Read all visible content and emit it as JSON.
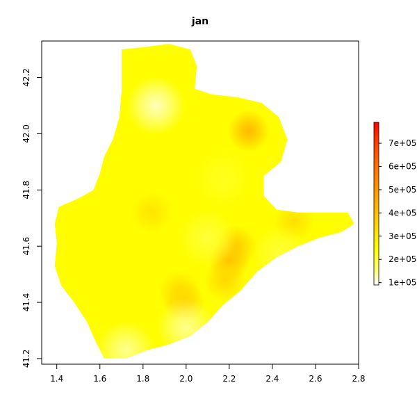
{
  "title": "jan",
  "colors": {
    "ramp": [
      "#ffffff",
      "#ffff80",
      "#ffff00",
      "#ffcc00",
      "#ff9900",
      "#ff6600",
      "#ff3300",
      "#ff0000"
    ],
    "axis": "#000000"
  },
  "chart_data": {
    "type": "heatmap",
    "xlim": [
      1.33,
      2.8
    ],
    "ylim": [
      41.18,
      42.33
    ],
    "x_ticks": [
      1.4,
      1.6,
      1.8,
      2.0,
      2.2,
      2.4,
      2.6,
      2.8
    ],
    "y_ticks": [
      41.2,
      41.4,
      41.6,
      41.8,
      42.0,
      42.2
    ],
    "x_tick_labels": [
      "1.4",
      "1.6",
      "1.8",
      "2.0",
      "2.2",
      "2.4",
      "2.6",
      "2.8"
    ],
    "y_tick_labels": [
      "41.2",
      "41.4",
      "41.6",
      "41.8",
      "42.0",
      "42.2"
    ],
    "legend": {
      "range": [
        90000,
        790000
      ],
      "ticks": [
        100000,
        200000,
        300000,
        400000,
        500000,
        600000,
        700000
      ],
      "labels": [
        "1e+05",
        "2e+05",
        "3e+05",
        "4e+05",
        "5e+05",
        "6e+05",
        "7e+05"
      ],
      "placement": "right"
    },
    "region_outline": [
      [
        1.7,
        42.3
      ],
      [
        1.82,
        42.31
      ],
      [
        1.92,
        42.32
      ],
      [
        2.02,
        42.3
      ],
      [
        2.05,
        42.24
      ],
      [
        2.04,
        42.16
      ],
      [
        2.12,
        42.14
      ],
      [
        2.24,
        42.13
      ],
      [
        2.35,
        42.11
      ],
      [
        2.43,
        42.06
      ],
      [
        2.47,
        41.98
      ],
      [
        2.44,
        41.9
      ],
      [
        2.36,
        41.85
      ],
      [
        2.36,
        41.78
      ],
      [
        2.42,
        41.73
      ],
      [
        2.52,
        41.72
      ],
      [
        2.64,
        41.72
      ],
      [
        2.75,
        41.72
      ],
      [
        2.78,
        41.68
      ],
      [
        2.72,
        41.65
      ],
      [
        2.62,
        41.63
      ],
      [
        2.52,
        41.6
      ],
      [
        2.42,
        41.56
      ],
      [
        2.33,
        41.51
      ],
      [
        2.25,
        41.44
      ],
      [
        2.17,
        41.39
      ],
      [
        2.1,
        41.33
      ],
      [
        2.02,
        41.28
      ],
      [
        1.92,
        41.25
      ],
      [
        1.82,
        41.23
      ],
      [
        1.72,
        41.2
      ],
      [
        1.62,
        41.2
      ],
      [
        1.58,
        41.26
      ],
      [
        1.54,
        41.33
      ],
      [
        1.48,
        41.4
      ],
      [
        1.42,
        41.46
      ],
      [
        1.39,
        41.53
      ],
      [
        1.4,
        41.61
      ],
      [
        1.39,
        41.68
      ],
      [
        1.41,
        41.74
      ],
      [
        1.5,
        41.77
      ],
      [
        1.57,
        41.8
      ],
      [
        1.6,
        41.86
      ],
      [
        1.62,
        41.92
      ],
      [
        1.66,
        41.98
      ],
      [
        1.69,
        42.06
      ],
      [
        1.7,
        42.15
      ],
      [
        1.7,
        42.24
      ]
    ],
    "hotspots": [
      {
        "x": 2.29,
        "y": 42.01,
        "value": 420000
      },
      {
        "x": 2.2,
        "y": 41.55,
        "value": 400000
      },
      {
        "x": 2.23,
        "y": 41.6,
        "value": 370000
      },
      {
        "x": 1.99,
        "y": 41.4,
        "value": 360000
      },
      {
        "x": 2.18,
        "y": 41.48,
        "value": 340000
      },
      {
        "x": 1.97,
        "y": 41.44,
        "value": 330000
      },
      {
        "x": 2.5,
        "y": 41.69,
        "value": 320000
      },
      {
        "x": 1.84,
        "y": 41.72,
        "value": 310000
      },
      {
        "x": 1.86,
        "y": 42.1,
        "value": 120000
      },
      {
        "x": 1.72,
        "y": 41.23,
        "value": 140000
      },
      {
        "x": 2.0,
        "y": 41.31,
        "value": 140000
      },
      {
        "x": 2.1,
        "y": 41.63,
        "value": 200000
      },
      {
        "x": 2.44,
        "y": 41.57,
        "value": 200000
      },
      {
        "x": 2.17,
        "y": 41.84,
        "value": 220000
      }
    ],
    "background_value": 250000
  }
}
